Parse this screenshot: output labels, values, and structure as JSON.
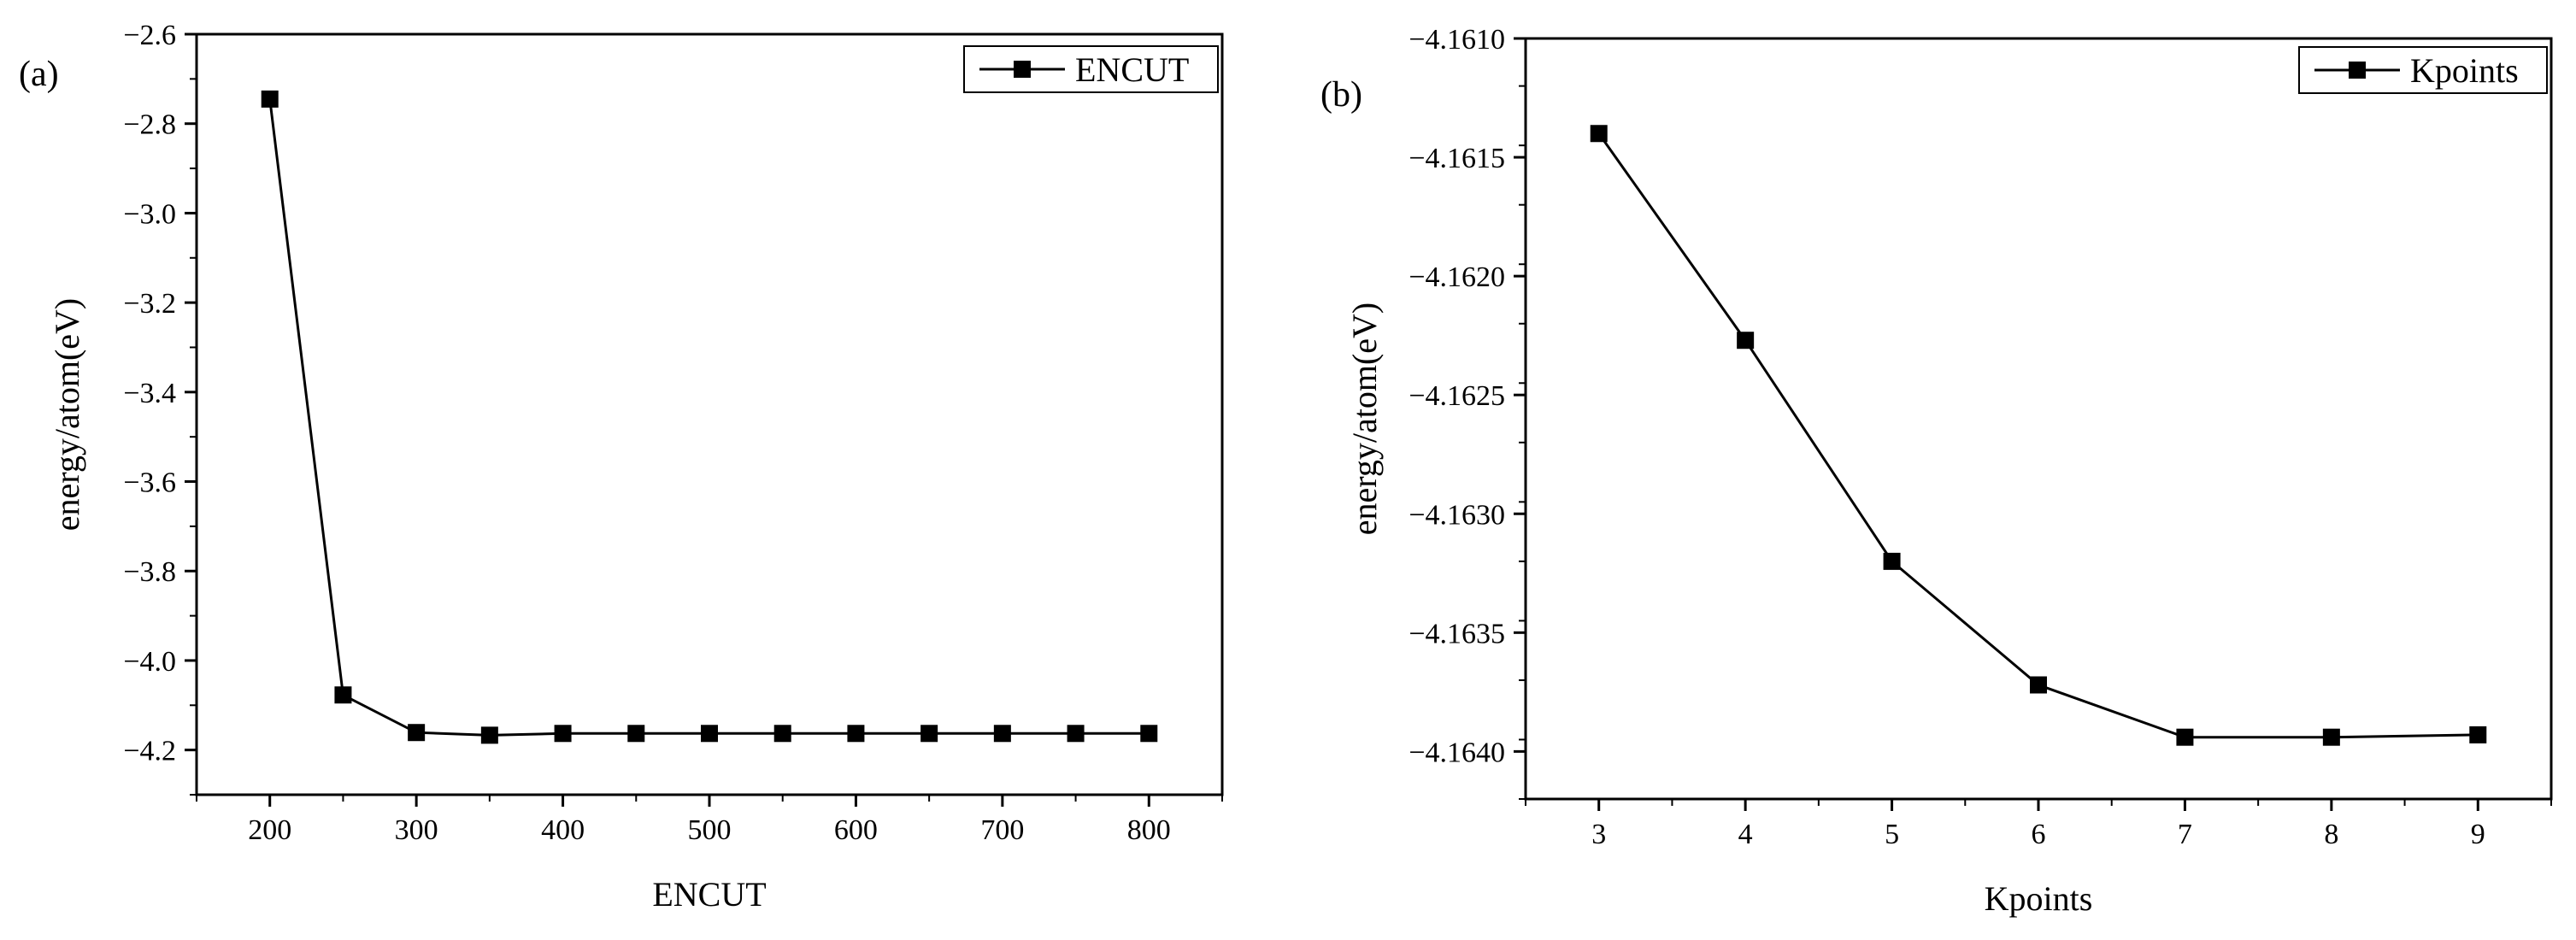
{
  "chart_data": [
    {
      "panel_label": "(a)",
      "type": "line",
      "xlabel": "ENCUT",
      "ylabel": "energy/atom(eV)",
      "xlim": [
        150,
        850
      ],
      "ylim": [
        -4.3,
        -2.6
      ],
      "xticks": [
        "200",
        "300",
        "400",
        "500",
        "600",
        "700",
        "800"
      ],
      "yticks": [
        "-2.6",
        "-2.8",
        "-3.0",
        "-3.2",
        "-3.4",
        "-3.6",
        "-3.8",
        "-4.0",
        "-4.2"
      ],
      "legend_position": "top-right",
      "marker": "square",
      "series": [
        {
          "name": "ENCUT",
          "x": [
            200,
            250,
            300,
            350,
            400,
            450,
            500,
            550,
            600,
            650,
            700,
            750,
            800
          ],
          "y": [
            -2.745,
            -4.077,
            -4.161,
            -4.167,
            -4.163,
            -4.163,
            -4.163,
            -4.163,
            -4.163,
            -4.163,
            -4.163,
            -4.163,
            -4.163
          ]
        }
      ]
    },
    {
      "panel_label": "(b)",
      "type": "line",
      "xlabel": "Kpoints",
      "ylabel": "energy/atom(eV)",
      "xlim": [
        2.5,
        9.5
      ],
      "ylim": [
        -4.1642,
        -4.161
      ],
      "xticks": [
        "3",
        "4",
        "5",
        "6",
        "7",
        "8",
        "9"
      ],
      "yticks": [
        "-4.1610",
        "-4.1615",
        "-4.1620",
        "-4.1625",
        "-4.1630",
        "-4.1635",
        "-4.1640"
      ],
      "legend_position": "top-right",
      "marker": "square",
      "series": [
        {
          "name": "Kpoints",
          "x": [
            3,
            4,
            5,
            6,
            7,
            8,
            9
          ],
          "y": [
            -4.1614,
            -4.16227,
            -4.1632,
            -4.16372,
            -4.16394,
            -4.16394,
            -4.16393
          ]
        }
      ]
    }
  ]
}
